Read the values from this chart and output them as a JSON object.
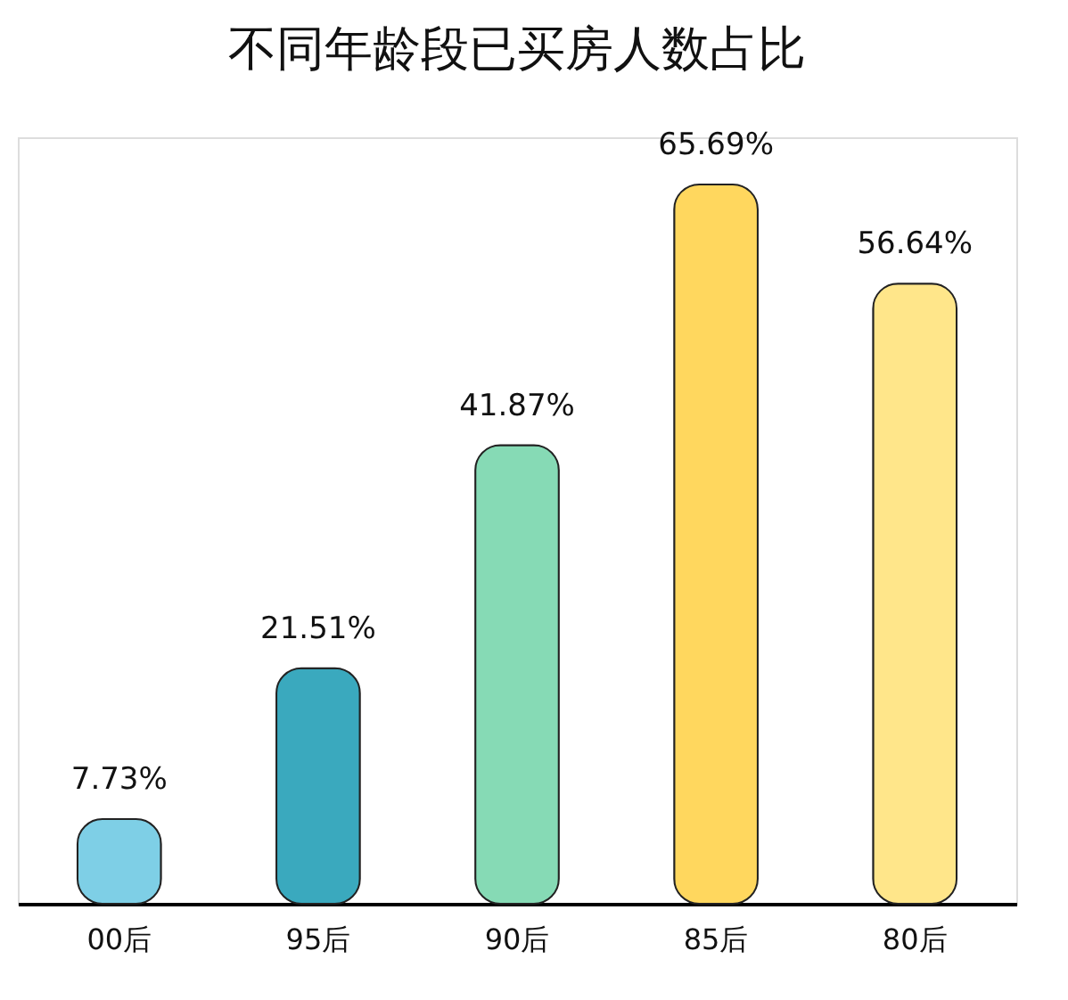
{
  "chart_data": {
    "type": "bar",
    "title": "不同年龄段已买房人数占比",
    "categories": [
      "00后",
      "95后",
      "90后",
      "85后",
      "80后"
    ],
    "values": [
      7.73,
      21.51,
      41.87,
      65.69,
      56.64
    ],
    "colors": [
      "#7ecfe6",
      "#3aa9be",
      "#86dab5",
      "#ffd75e",
      "#ffe68a"
    ],
    "value_labels": [
      "7.73%",
      "21.51%",
      "41.87%",
      "65.69%",
      "56.64%"
    ],
    "grid": false,
    "legend": false
  }
}
